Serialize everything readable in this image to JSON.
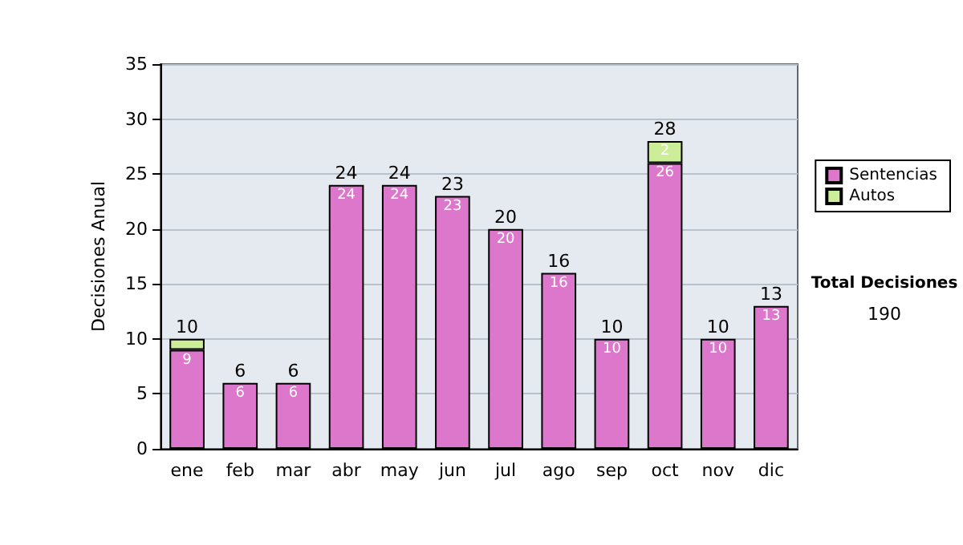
{
  "chart_data": {
    "type": "bar",
    "stacked": true,
    "ylabel": "Decisiones Anual",
    "categories": [
      "ene",
      "feb",
      "mar",
      "abr",
      "may",
      "jun",
      "jul",
      "ago",
      "sep",
      "oct",
      "nov",
      "dic"
    ],
    "series": [
      {
        "name": "Sentencias",
        "color": "#dd77cc",
        "values": [
          9,
          6,
          6,
          24,
          24,
          23,
          20,
          16,
          10,
          26,
          10,
          13
        ],
        "value_labels": [
          "9",
          "6",
          "6",
          "24",
          "24",
          "23",
          "20",
          "16",
          "10",
          "26",
          "10",
          "13"
        ]
      },
      {
        "name": "Autos",
        "color": "#ccee99",
        "values": [
          1,
          null,
          null,
          null,
          null,
          null,
          null,
          null,
          null,
          2,
          null,
          null
        ],
        "value_labels": [
          null,
          null,
          null,
          null,
          null,
          null,
          null,
          null,
          null,
          "2",
          null,
          null
        ]
      }
    ],
    "totals": [
      "10",
      "6",
      "6",
      "24",
      "24",
      "23",
      "20",
      "16",
      "10",
      "28",
      "10",
      "13"
    ],
    "ylim": [
      0,
      35
    ],
    "yticks": [
      0,
      5,
      10,
      15,
      20,
      25,
      30,
      35
    ],
    "grid": "y",
    "legend": "right",
    "annotations": [
      "Total Decisiones",
      "190"
    ]
  }
}
